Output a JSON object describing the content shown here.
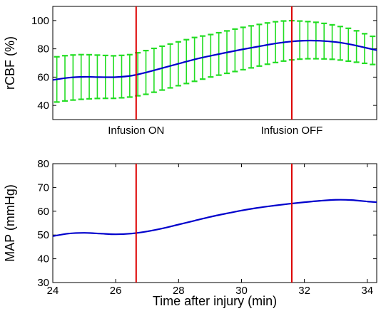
{
  "chart_data": [
    {
      "type": "line",
      "title": "",
      "xlabel": "",
      "ylabel": "rCBF (%)",
      "xlim": [
        24,
        34.3
      ],
      "ylim": [
        30,
        110
      ],
      "yticks": [
        40,
        60,
        80,
        100
      ],
      "grid": false,
      "markers": [
        {
          "x": 26.65,
          "label": "Infusion ON"
        },
        {
          "x": 31.6,
          "label": "Infusion OFF"
        }
      ],
      "colors": {
        "line": "#0000cc",
        "error": "#22dd22",
        "marker": "#dd0000"
      },
      "series": [
        {
          "x": [
            24,
            24.5,
            25,
            25.5,
            26,
            26.5,
            27,
            27.5,
            28,
            28.5,
            29,
            29.5,
            30,
            30.5,
            31,
            31.5,
            32,
            32.5,
            33,
            33.5,
            34,
            34.3
          ],
          "values": [
            58,
            59.6,
            60.2,
            60,
            60,
            61,
            63.5,
            66.5,
            69.5,
            72.5,
            75,
            77.3,
            79.5,
            81.5,
            83.5,
            85,
            85.8,
            85.7,
            84.8,
            83,
            80.5,
            79
          ],
          "error_low": [
            42,
            43.5,
            44.5,
            45,
            45,
            46,
            48,
            51,
            54,
            57,
            60,
            62.5,
            65,
            67.5,
            70,
            72,
            73,
            73,
            72.5,
            71,
            69.5,
            68.5
          ],
          "error_high": [
            74,
            75.5,
            76,
            75.5,
            75,
            76,
            79,
            82,
            85,
            88,
            90,
            92.5,
            95,
            97,
            99,
            100,
            99.5,
            98.5,
            96.5,
            94,
            90,
            88
          ]
        }
      ]
    },
    {
      "type": "line",
      "title": "",
      "xlabel": "Time after injury (min)",
      "ylabel": "MAP (mmHg)",
      "xlim": [
        24,
        34.3
      ],
      "ylim": [
        30,
        80
      ],
      "xticks": [
        24,
        26,
        28,
        30,
        32,
        34
      ],
      "yticks": [
        30,
        40,
        50,
        60,
        70,
        80
      ],
      "grid": false,
      "markers": [
        {
          "x": 26.65
        },
        {
          "x": 31.6
        }
      ],
      "colors": {
        "line": "#0000cc",
        "marker": "#dd0000"
      },
      "series": [
        {
          "x": [
            24,
            24.5,
            25,
            25.5,
            26,
            26.5,
            27,
            27.5,
            28,
            28.5,
            29,
            29.5,
            30,
            30.5,
            31,
            31.5,
            32,
            32.5,
            33,
            33.5,
            34,
            34.3
          ],
          "values": [
            49.5,
            50.6,
            50.9,
            50.6,
            50.3,
            50.6,
            51.5,
            52.8,
            54.4,
            56,
            57.6,
            59,
            60.3,
            61.4,
            62.3,
            63.1,
            63.8,
            64.4,
            64.8,
            64.7,
            64.1,
            63.8
          ]
        }
      ]
    }
  ]
}
